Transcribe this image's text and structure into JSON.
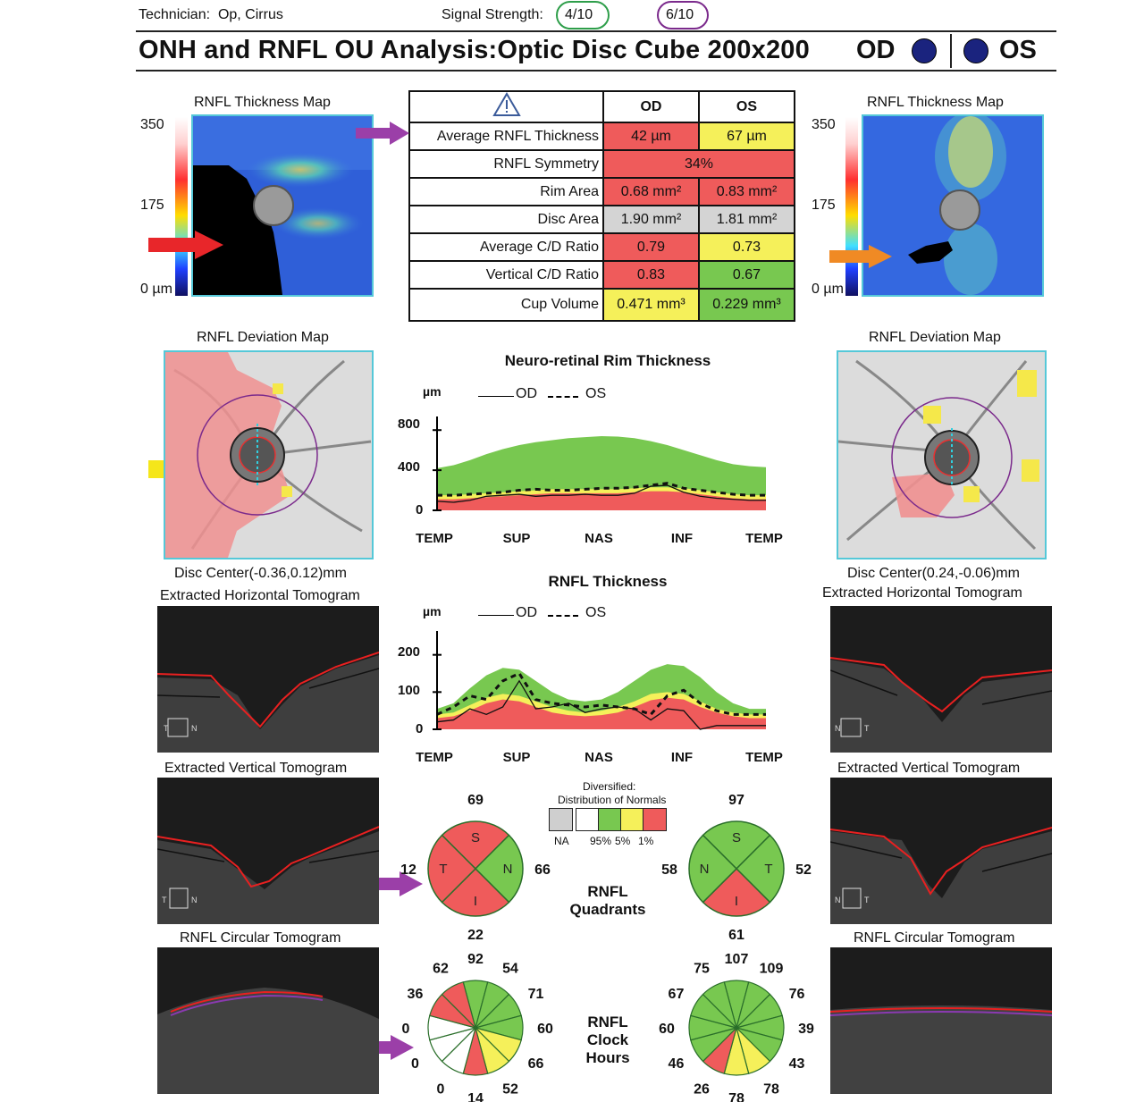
{
  "header": {
    "technician_label": "Technician:",
    "technician_value": "Op, Cirrus",
    "signal_label": "Signal Strength:",
    "signal_od": "4/10",
    "signal_os": "6/10",
    "title": "ONH and RNFL OU Analysis:Optic Disc Cube 200x200",
    "od_label": "OD",
    "os_label": "OS",
    "colors": {
      "od_ring": "#2e9e4a",
      "os_ring": "#7b2a8c",
      "eye_dot": "#1a237e"
    }
  },
  "thickness_map": {
    "title": "RNFL Thickness Map",
    "scale_top": "350",
    "scale_mid": "175",
    "scale_bottom": "0 µm"
  },
  "summary_table": {
    "warning_icon": "warning-icon",
    "col_od": "OD",
    "col_os": "OS",
    "rows": [
      {
        "label": "Average RNFL Thickness",
        "od": "42 µm",
        "os": "67 µm",
        "od_status": "red",
        "os_status": "yel"
      },
      {
        "label": "RNFL Symmetry",
        "combined": "34%",
        "status": "red"
      },
      {
        "label": "Rim Area",
        "od": "0.68 mm²",
        "os": "0.83 mm²",
        "od_status": "red",
        "os_status": "red"
      },
      {
        "label": "Disc Area",
        "od": "1.90 mm²",
        "os": "1.81 mm²",
        "od_status": "gry",
        "os_status": "gry"
      },
      {
        "label": "Average C/D Ratio",
        "od": "0.79",
        "os": "0.73",
        "od_status": "red",
        "os_status": "yel"
      },
      {
        "label": "Vertical C/D Ratio",
        "od": "0.83",
        "os": "0.67",
        "od_status": "red",
        "os_status": "grn"
      },
      {
        "label": "Cup Volume",
        "od": "0.471 mm³",
        "os": "0.229 mm³",
        "od_status": "yel",
        "os_status": "grn"
      }
    ]
  },
  "deviation_map": {
    "title": "RNFL Deviation Map",
    "disc_center_od": "Disc Center(-0.36,0.12)mm",
    "disc_center_os": "Disc Center(0.24,-0.06)mm"
  },
  "tomograms": {
    "horizontal": "Extracted Horizontal Tomogram",
    "vertical": "Extracted Vertical Tomogram",
    "circular": "RNFL Circular Tomogram",
    "od_h_orient": [
      "T",
      "N"
    ],
    "os_h_orient": [
      "N",
      "T"
    ],
    "od_v_orient": [
      "T",
      "N"
    ],
    "os_v_orient": [
      "N",
      "T"
    ]
  },
  "chart_data": [
    {
      "type": "area",
      "title": "Neuro-retinal Rim Thickness",
      "ylabel": "µm",
      "yticks": [
        "800",
        "400",
        "0"
      ],
      "ylim": [
        0,
        900
      ],
      "categories": [
        "TEMP",
        "SUP",
        "NAS",
        "INF",
        "TEMP"
      ],
      "legend": [
        "OD",
        "OS"
      ],
      "x": [
        0,
        0.05,
        0.1,
        0.15,
        0.2,
        0.25,
        0.3,
        0.35,
        0.4,
        0.45,
        0.5,
        0.55,
        0.6,
        0.65,
        0.7,
        0.75,
        0.8,
        0.85,
        0.9,
        0.95,
        1.0
      ],
      "normal_green_top": [
        420,
        450,
        500,
        560,
        610,
        650,
        680,
        700,
        720,
        730,
        740,
        735,
        720,
        690,
        650,
        600,
        550,
        500,
        460,
        440,
        430
      ],
      "normal_yellow_top": [
        150,
        150,
        160,
        170,
        180,
        190,
        200,
        210,
        210,
        210,
        210,
        210,
        220,
        230,
        230,
        220,
        200,
        180,
        160,
        150,
        150
      ],
      "normal_red_top": [
        110,
        110,
        120,
        130,
        140,
        150,
        160,
        170,
        170,
        170,
        170,
        170,
        180,
        190,
        190,
        180,
        160,
        140,
        120,
        110,
        110
      ],
      "series": [
        {
          "name": "OD",
          "style": "solid",
          "values": [
            90,
            80,
            100,
            140,
            150,
            160,
            140,
            150,
            150,
            160,
            150,
            150,
            170,
            240,
            250,
            180,
            140,
            120,
            110,
            100,
            100
          ]
        },
        {
          "name": "OS",
          "style": "dashed",
          "values": [
            150,
            150,
            160,
            170,
            180,
            200,
            210,
            200,
            200,
            210,
            220,
            220,
            230,
            250,
            270,
            220,
            200,
            180,
            160,
            150,
            150
          ]
        }
      ]
    },
    {
      "type": "area",
      "title": "RNFL Thickness",
      "ylabel": "µm",
      "yticks": [
        "200",
        "100",
        "0"
      ],
      "ylim": [
        0,
        240
      ],
      "categories": [
        "TEMP",
        "SUP",
        "NAS",
        "INF",
        "TEMP"
      ],
      "legend": [
        "OD",
        "OS"
      ],
      "x": [
        0,
        0.05,
        0.1,
        0.15,
        0.2,
        0.25,
        0.3,
        0.35,
        0.4,
        0.45,
        0.5,
        0.55,
        0.6,
        0.65,
        0.7,
        0.75,
        0.8,
        0.85,
        0.9,
        0.95,
        1.0
      ],
      "normal_green_top": [
        55,
        70,
        110,
        145,
        165,
        160,
        130,
        100,
        80,
        75,
        80,
        100,
        130,
        160,
        175,
        170,
        140,
        100,
        70,
        55,
        55
      ],
      "normal_yellow_top": [
        40,
        45,
        65,
        85,
        95,
        90,
        75,
        60,
        50,
        45,
        50,
        60,
        75,
        95,
        100,
        95,
        75,
        55,
        45,
        40,
        40
      ],
      "normal_red_top": [
        30,
        35,
        50,
        70,
        80,
        75,
        60,
        45,
        38,
        35,
        38,
        45,
        60,
        78,
        85,
        80,
        60,
        45,
        35,
        30,
        30
      ],
      "series": [
        {
          "name": "OD",
          "style": "solid",
          "values": [
            20,
            25,
            55,
            40,
            60,
            130,
            55,
            60,
            70,
            45,
            55,
            60,
            55,
            25,
            55,
            50,
            0,
            10,
            10,
            10,
            10
          ]
        },
        {
          "name": "OS",
          "style": "dashed",
          "values": [
            40,
            60,
            90,
            80,
            130,
            150,
            80,
            70,
            65,
            60,
            65,
            60,
            55,
            40,
            90,
            105,
            70,
            50,
            40,
            40,
            40
          ]
        }
      ]
    },
    {
      "type": "pie",
      "title": "RNFL Quadrants OD",
      "labels": [
        "S",
        "N",
        "I",
        "T"
      ],
      "values": [
        69,
        66,
        22,
        12
      ],
      "status": [
        "red",
        "grn",
        "red",
        "red"
      ]
    },
    {
      "type": "pie",
      "title": "RNFL Quadrants OS",
      "labels": [
        "S",
        "T",
        "I",
        "N"
      ],
      "values": [
        97,
        52,
        61,
        58
      ],
      "status": [
        "grn",
        "grn",
        "red",
        "grn"
      ]
    },
    {
      "type": "pie",
      "title": "RNFL Clock Hours OD",
      "hours_clockwise_from_12": [
        "92",
        "54",
        "71",
        "60",
        "66",
        "52",
        "14",
        "0",
        "0",
        "0",
        "36",
        "62"
      ],
      "status": [
        "grn",
        "grn",
        "grn",
        "grn",
        "yel",
        "yel",
        "red",
        "wht",
        "wht",
        "wht",
        "red",
        "red"
      ]
    },
    {
      "type": "pie",
      "title": "RNFL Clock Hours OS",
      "hours_clockwise_from_12": [
        "107",
        "109",
        "76",
        "39",
        "43",
        "78",
        "78",
        "26",
        "46",
        "60",
        "67",
        "75"
      ],
      "status": [
        "grn",
        "grn",
        "grn",
        "grn",
        "grn",
        "yel",
        "yel",
        "red",
        "grn",
        "grn",
        "grn",
        "grn"
      ]
    }
  ],
  "quadrants_label_1": "RNFL",
  "quadrants_label_2": "Quadrants",
  "clock_label_1": "RNFL",
  "clock_label_2": "Clock",
  "clock_label_3": "Hours",
  "legend": {
    "title_1": "Diversified:",
    "title_2": "Distribution of Normals",
    "labels": [
      "NA",
      "95%",
      "5%",
      "1%"
    ],
    "colors": [
      "#cfcfcf",
      "#ffffff",
      "#78c850",
      "#f5f05a",
      "#ef5b5b"
    ]
  },
  "arrows": {
    "purple": "#9b3fa8",
    "red": "#e8262a",
    "orange": "#f08a24",
    "yellow": "#f5e61a",
    "blue": "#4a4ac0"
  }
}
